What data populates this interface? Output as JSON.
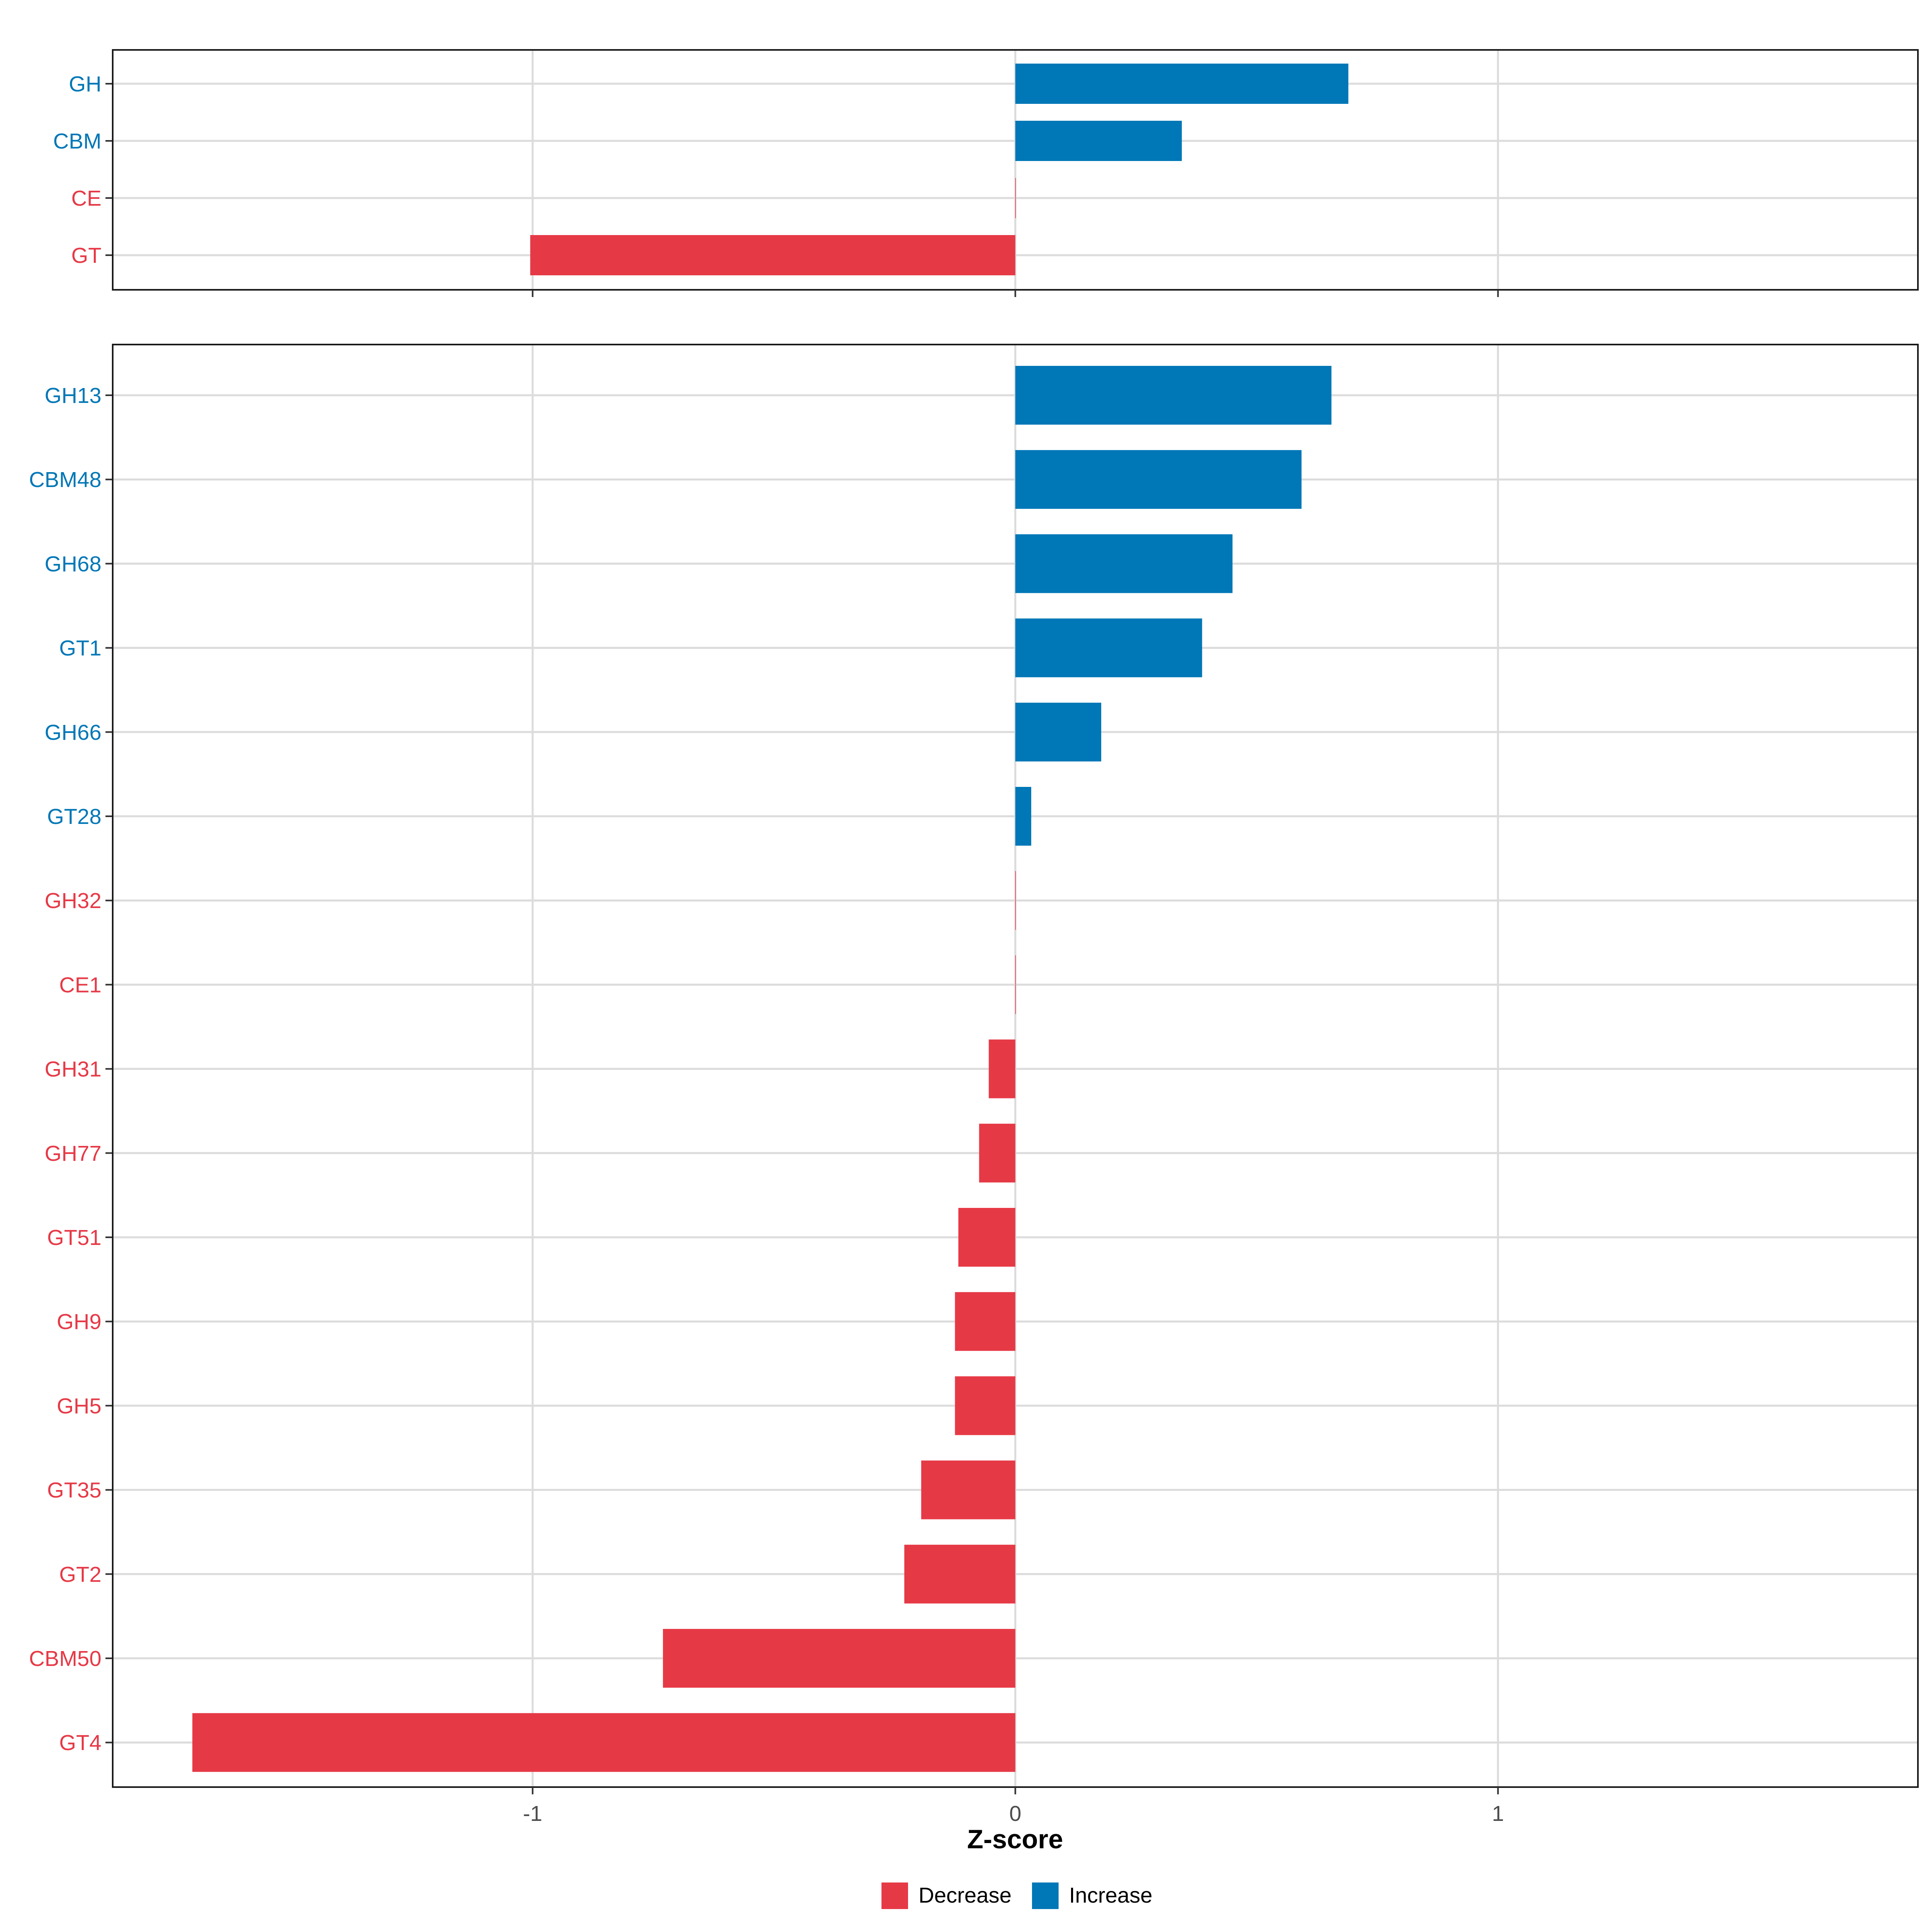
{
  "colors": {
    "decrease": "#E63946",
    "increase": "#0077B6",
    "grid": "#DCDCDC",
    "frame": "#1a1a1a",
    "tick_text": "#4d4d4d"
  },
  "chart_data": [
    {
      "type": "bar",
      "orientation": "horizontal",
      "panel": "top",
      "categories": [
        "GH",
        "CBM",
        "CE",
        "GT"
      ],
      "values": [
        0.69,
        0.345,
        0.0,
        -1.005
      ],
      "directions": [
        "Increase",
        "Increase",
        "Decrease",
        "Decrease"
      ],
      "xlim": [
        -1.87,
        1.87
      ],
      "xticks": [
        -1,
        0,
        1
      ],
      "grid": true
    },
    {
      "type": "bar",
      "orientation": "horizontal",
      "panel": "bottom",
      "categories": [
        "GH13",
        "CBM48",
        "GH68",
        "GT1",
        "GH66",
        "GT28",
        "GH32",
        "CE1",
        "GH31",
        "GH77",
        "GT51",
        "GH9",
        "GH5",
        "GT35",
        "GT2",
        "CBM50",
        "GT4"
      ],
      "values": [
        0.655,
        0.593,
        0.45,
        0.387,
        0.178,
        0.033,
        0.0,
        0.0,
        -0.055,
        -0.075,
        -0.118,
        -0.125,
        -0.125,
        -0.195,
        -0.23,
        -0.73,
        -1.705
      ],
      "directions": [
        "Increase",
        "Increase",
        "Increase",
        "Increase",
        "Increase",
        "Increase",
        "Decrease",
        "Decrease",
        "Decrease",
        "Decrease",
        "Decrease",
        "Decrease",
        "Decrease",
        "Decrease",
        "Decrease",
        "Decrease",
        "Decrease"
      ],
      "xlim": [
        -1.87,
        1.87
      ],
      "xticks": [
        -1,
        0,
        1
      ],
      "xlabel": "Z-score",
      "grid": true
    }
  ],
  "legend": {
    "position": "bottom",
    "items": [
      {
        "label": "Decrease",
        "key": "decrease"
      },
      {
        "label": "Increase",
        "key": "increase"
      }
    ]
  }
}
